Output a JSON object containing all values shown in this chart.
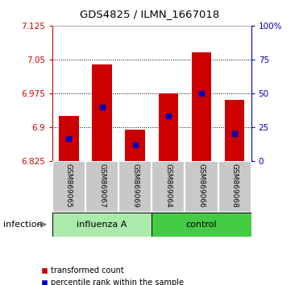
{
  "title": "GDS4825 / ILMN_1667018",
  "samples": [
    "GSM869065",
    "GSM869067",
    "GSM869069",
    "GSM869064",
    "GSM869066",
    "GSM869068"
  ],
  "bar_bottom": 6.825,
  "bar_tops": [
    6.925,
    7.04,
    6.895,
    6.975,
    7.065,
    6.96
  ],
  "percentile_values": [
    6.875,
    6.945,
    6.86,
    6.925,
    6.975,
    6.885
  ],
  "ylim_left": [
    6.825,
    7.125
  ],
  "ylim_right": [
    0,
    100
  ],
  "yticks_left": [
    6.825,
    6.9,
    6.975,
    7.05,
    7.125
  ],
  "yticks_right": [
    0,
    25,
    50,
    75,
    100
  ],
  "ytick_labels_left": [
    "6.825",
    "6.9",
    "6.975",
    "7.05",
    "7.125"
  ],
  "ytick_labels_right": [
    "0",
    "25",
    "50",
    "75",
    "100%"
  ],
  "left_axis_color": "#CC0000",
  "right_axis_color": "#0000BB",
  "bar_color": "#CC0000",
  "percentile_color": "#0000BB",
  "legend_label_bar": "transformed count",
  "legend_label_pct": "percentile rank within the sample",
  "group_annotation": "infection",
  "label_area_color": "#C8C8C8",
  "flu_color": "#AAEAAA",
  "ctrl_color": "#44CC44"
}
